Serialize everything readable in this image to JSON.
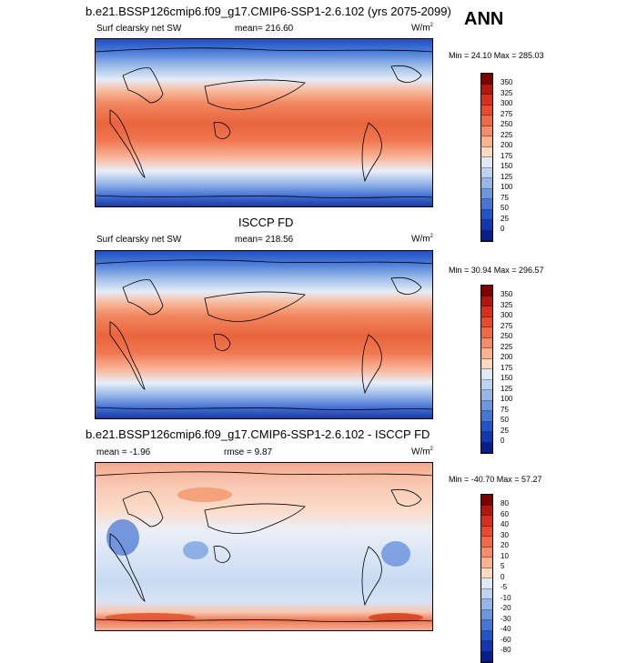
{
  "season": "ANN",
  "model_panel": {
    "title": "b.e21.BSSP126cmip6.f09_g17.CMIP6-SSP1-2.6.102 (yrs 2075-2099)",
    "variable": "Surf clearsky net SW",
    "mean_text": "mean= 216.60",
    "units": "W/m",
    "units_sup": "2",
    "minmax": "Min =  24.10 Max = 285.03"
  },
  "obs_panel": {
    "title": "ISCCP FD",
    "variable": "Surf clearsky net SW",
    "mean_text": "mean= 218.56",
    "units": "W/m",
    "units_sup": "2",
    "minmax": "Min =  30.94 Max = 296.57"
  },
  "diff_panel": {
    "title": "b.e21.BSSP126cmip6.f09_g17.CMIP6-SSP1-2.6.102 - ISCCP FD",
    "mean_text": "mean =  -1.96",
    "rmse_text": "rmse =   9.87",
    "units": "W/m",
    "units_sup": "2",
    "minmax": "Min = -40.70 Max =  57.27"
  },
  "colorbar_abs": {
    "labels": [
      "350",
      "325",
      "300",
      "275",
      "250",
      "225",
      "200",
      "175",
      "150",
      "125",
      "100",
      "75",
      "50",
      "25",
      "0"
    ],
    "colors": [
      "#7f0000",
      "#b2170c",
      "#d7301f",
      "#e84a2c",
      "#f06a45",
      "#f68d6a",
      "#fab291",
      "#fdd9c0",
      "#deebf7",
      "#bcd4f0",
      "#93b7e8",
      "#6b97df",
      "#4476d6",
      "#2153c9",
      "#1238b0",
      "#061f8f"
    ]
  },
  "colorbar_diff": {
    "labels": [
      "80",
      "60",
      "40",
      "30",
      "20",
      "10",
      "5",
      "0",
      "-5",
      "-10",
      "-20",
      "-30",
      "-40",
      "-60",
      "-80"
    ],
    "colors": [
      "#7f0000",
      "#b2170c",
      "#d7301f",
      "#e84a2c",
      "#f06a45",
      "#f68d6a",
      "#fab291",
      "#fdd9c0",
      "#deebf7",
      "#bcd4f0",
      "#93b7e8",
      "#6b97df",
      "#4476d6",
      "#2153c9",
      "#1238b0",
      "#061f8f"
    ]
  }
}
